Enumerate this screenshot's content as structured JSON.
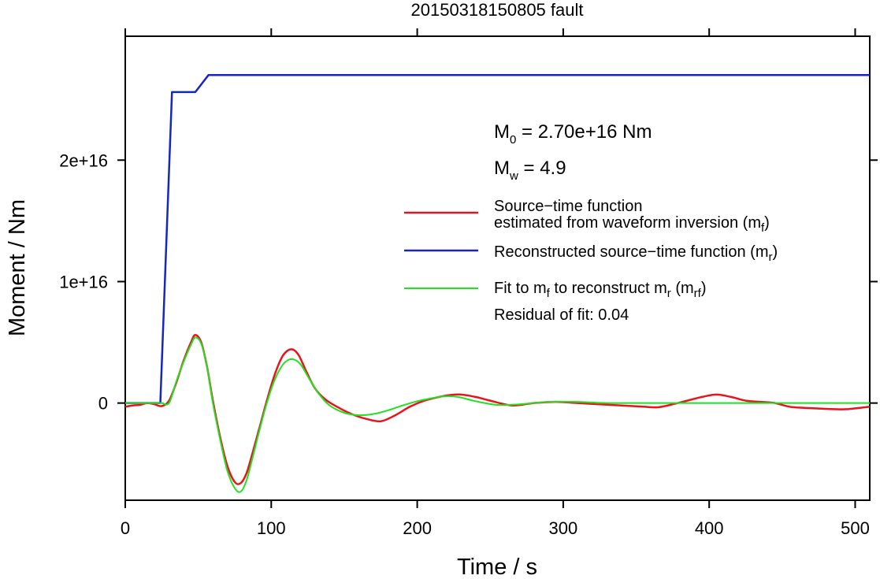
{
  "chart_data": {
    "type": "line",
    "title": "20150318150805 fault",
    "xlabel": "Time / s",
    "ylabel": "Moment / Nm",
    "xlim": [
      0,
      510
    ],
    "ylim": [
      -8000000000000000.0,
      3.02e+16
    ],
    "x_ticks": [
      0,
      100,
      200,
      300,
      400,
      500
    ],
    "x_tick_labels": [
      "0",
      "100",
      "200",
      "300",
      "400",
      "500"
    ],
    "y_ticks": [
      0,
      1e+16,
      2e+16
    ],
    "y_tick_labels": [
      "0",
      "1e+16",
      "2e+16"
    ],
    "grid": false,
    "legend_position": "right",
    "annotations": {
      "m0": {
        "base": "M",
        "sub": "0",
        "rest": " = 2.70e+16 Nm"
      },
      "mw": {
        "base": "M",
        "sub": "w",
        "rest": " = 4.9"
      },
      "residual": "Residual of fit: 0.04"
    },
    "legend": [
      {
        "color": "#e8141c",
        "line1": "Source−time function",
        "line2_pre": "estimated from waveform inversion (m",
        "line2_sub": "f",
        "line2_post": ")"
      },
      {
        "color": "#1626c0",
        "pre": "Reconstructed source−time function (m",
        "sub": "r",
        "post": ")"
      },
      {
        "color": "#22e022",
        "p1": "Fit to m",
        "s1": "f",
        "p2": " to reconstruct m",
        "s2": "r",
        "p3": " (m",
        "s3": "rf",
        "p4": ")"
      }
    ],
    "series": [
      {
        "color": "#1626c0",
        "x": [
          0,
          24,
          32,
          48,
          57,
          510
        ],
        "y": [
          0,
          0,
          2.56e+16,
          2.56e+16,
          2.7e+16,
          2.7e+16
        ]
      },
      {
        "color": "#e8141c",
        "x": [
          0,
          5,
          10,
          15,
          20,
          25,
          30,
          35,
          40,
          45,
          48,
          52,
          56,
          60,
          65,
          70,
          75,
          79,
          83,
          87,
          92,
          97,
          102,
          107,
          111,
          115,
          119,
          124,
          130,
          137,
          145,
          155,
          165,
          175,
          185,
          195,
          205,
          215,
          222,
          230,
          240,
          250,
          265,
          280,
          295,
          310,
          325,
          340,
          355,
          365,
          375,
          385,
          395,
          405,
          415,
          425,
          435,
          445,
          455,
          465,
          475,
          485,
          495,
          510
        ],
        "y": [
          -300000000000000.0,
          -200000000000000.0,
          -150000000000000.0,
          0,
          -100000000000000.0,
          -250000000000000.0,
          200000000000000.0,
          1700000000000000.0,
          3500000000000000.0,
          5000000000000000.0,
          5600000000000000.0,
          5000000000000000.0,
          3000000000000000.0,
          200000000000000.0,
          -2800000000000000.0,
          -5200000000000000.0,
          -6500000000000000.0,
          -6600000000000000.0,
          -5800000000000000.0,
          -4200000000000000.0,
          -2000000000000000.0,
          200000000000000.0,
          2200000000000000.0,
          3700000000000000.0,
          4300000000000000.0,
          4400000000000000.0,
          3900000000000000.0,
          2600000000000000.0,
          1200000000000000.0,
          300000000000000.0,
          -300000000000000.0,
          -900000000000000.0,
          -1300000000000000.0,
          -1500000000000000.0,
          -1000000000000000.0,
          -300000000000000.0,
          200000000000000.0,
          500000000000000.0,
          650000000000000.0,
          700000000000000.0,
          500000000000000.0,
          200000000000000.0,
          -200000000000000.0,
          0,
          100000000000000.0,
          0,
          -100000000000000.0,
          -200000000000000.0,
          -300000000000000.0,
          -350000000000000.0,
          -100000000000000.0,
          200000000000000.0,
          500000000000000.0,
          700000000000000.0,
          500000000000000.0,
          200000000000000.0,
          100000000000000.0,
          0,
          -300000000000000.0,
          -400000000000000.0,
          -450000000000000.0,
          -500000000000000.0,
          -500000000000000.0,
          -300000000000000.0
        ]
      },
      {
        "color": "#22e022",
        "x": [
          0,
          20,
          25,
          30,
          35,
          40,
          45,
          48,
          52,
          56,
          60,
          65,
          70,
          75,
          79,
          83,
          87,
          92,
          97,
          102,
          107,
          111,
          115,
          120,
          126,
          133,
          140,
          150,
          160,
          170,
          180,
          190,
          200,
          210,
          218,
          228,
          240,
          255,
          270,
          290,
          310,
          330,
          350,
          380,
          420,
          470,
          510
        ],
        "y": [
          0,
          0,
          0,
          0,
          1800000000000000.0,
          3400000000000000.0,
          4800000000000000.0,
          5400000000000000.0,
          4900000000000000.0,
          3000000000000000.0,
          0,
          -3000000000000000.0,
          -5600000000000000.0,
          -7000000000000000.0,
          -7300000000000000.0,
          -6400000000000000.0,
          -4600000000000000.0,
          -2200000000000000.0,
          0,
          1800000000000000.0,
          3000000000000000.0,
          3500000000000000.0,
          3600000000000000.0,
          3200000000000000.0,
          2000000000000000.0,
          700000000000000.0,
          -200000000000000.0,
          -800000000000000.0,
          -1000000000000000.0,
          -900000000000000.0,
          -600000000000000.0,
          -200000000000000.0,
          150000000000000.0,
          400000000000000.0,
          550000000000000.0,
          500000000000000.0,
          150000000000000.0,
          -150000000000000.0,
          -100000000000000.0,
          100000000000000.0,
          100000000000000.0,
          0,
          0,
          0,
          0,
          0,
          0
        ]
      }
    ]
  }
}
